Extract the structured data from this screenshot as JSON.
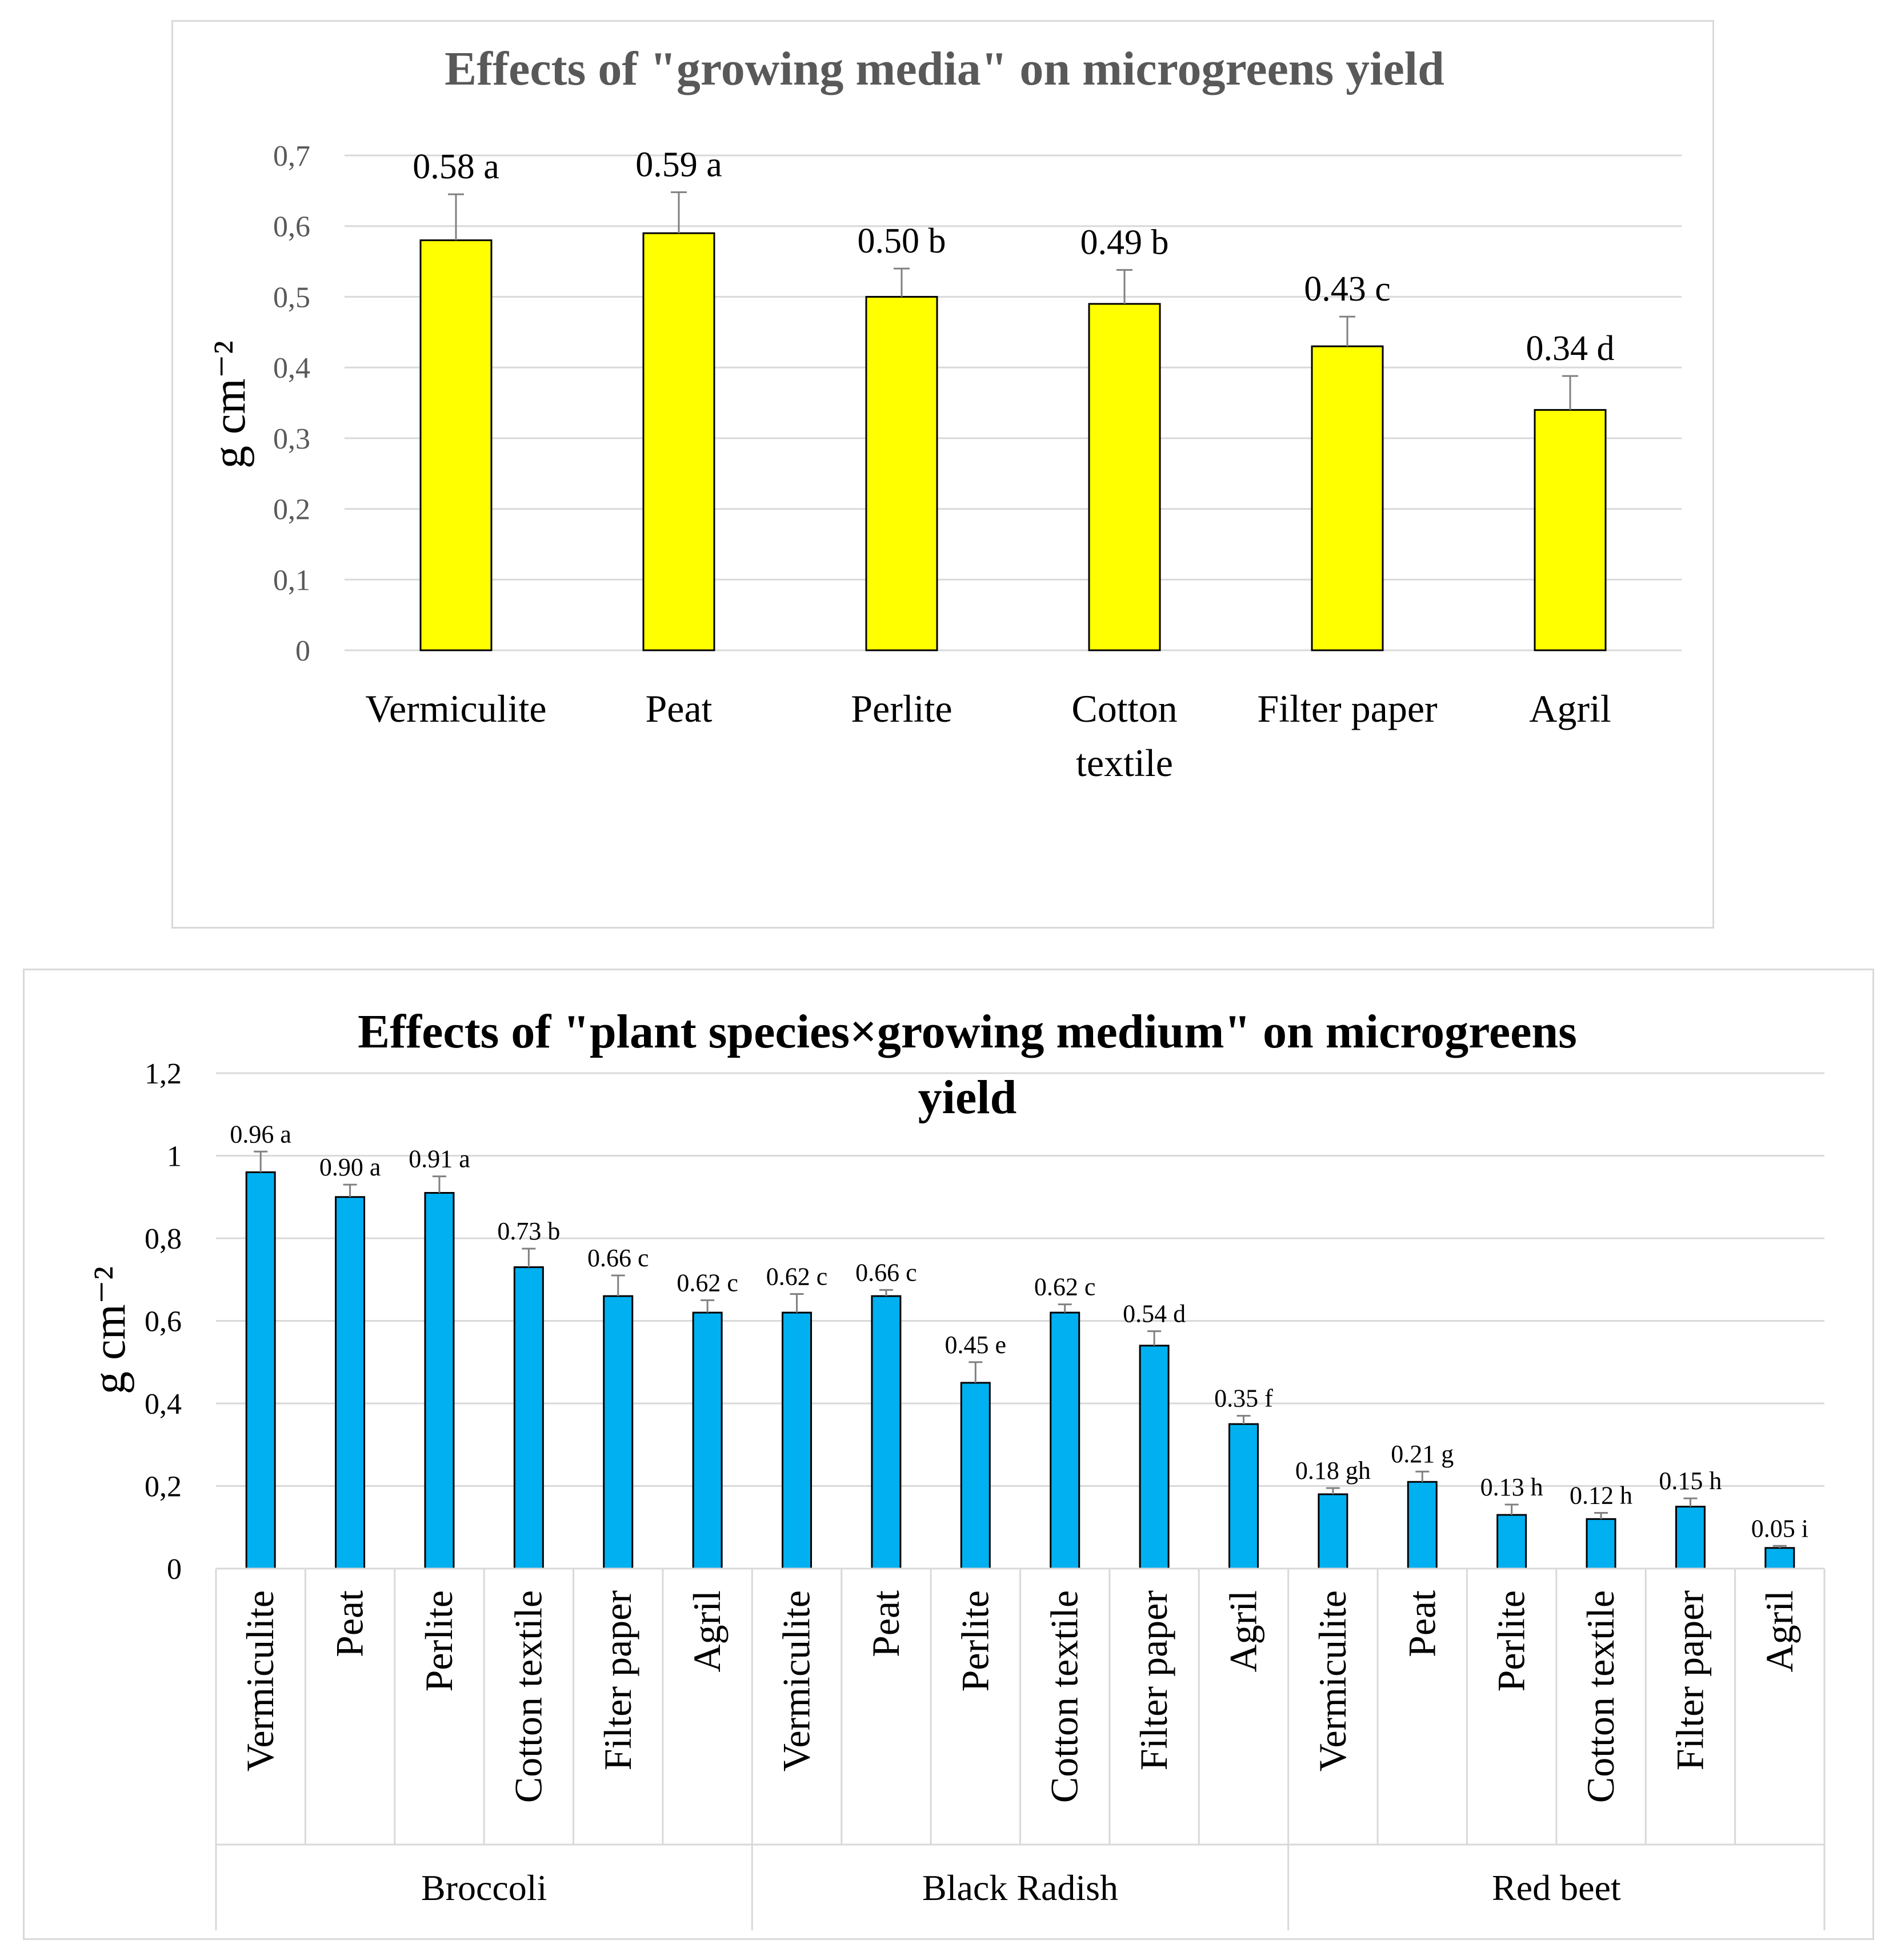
{
  "chart_data": [
    {
      "type": "bar",
      "title": "Effects of \"growing media\" on microgreens yield",
      "ylabel": "g cm⁻²",
      "ylim": [
        0,
        0.7
      ],
      "yticks": [
        "0",
        "0,1",
        "0,2",
        "0,3",
        "0,4",
        "0,5",
        "0,6",
        "0,7"
      ],
      "categories": [
        [
          "Vermiculite"
        ],
        [
          "Peat"
        ],
        [
          "Perlite"
        ],
        [
          "Cotton",
          "textile"
        ],
        [
          "Filter paper"
        ],
        [
          "Agril"
        ]
      ],
      "values": [
        0.58,
        0.59,
        0.5,
        0.49,
        0.43,
        0.34
      ],
      "errors": [
        0.065,
        0.058,
        0.04,
        0.048,
        0.042,
        0.048
      ],
      "labels": [
        "0.58 a",
        "0.59 a",
        "0.50 b",
        "0.49 b",
        "0.43 c",
        "0.34 d"
      ],
      "colors": {
        "bar": "#ffff00"
      }
    },
    {
      "type": "bar",
      "title_lines": [
        "Effects of \"plant species×growing medium\" on microgreens",
        "yield"
      ],
      "ylabel": "g cm⁻²",
      "ylim": [
        0,
        1.2
      ],
      "yticks": [
        "0",
        "0,2",
        "0,4",
        "0,6",
        "0,8",
        "1",
        "1,2"
      ],
      "groups": [
        "Broccoli",
        "Black Radish",
        "Red beet"
      ],
      "categories": [
        "Vermiculite",
        "Peat",
        "Perlite",
        "Cotton textile",
        "Filter paper",
        "Agril",
        "Vermiculite",
        "Peat",
        "Perlite",
        "Cotton textile",
        "Filter paper",
        "Agril",
        "Vermiculite",
        "Peat",
        "Perlite",
        "Cotton textile",
        "Filter paper",
        "Agril"
      ],
      "values": [
        0.96,
        0.9,
        0.91,
        0.73,
        0.66,
        0.62,
        0.62,
        0.66,
        0.45,
        0.62,
        0.54,
        0.35,
        0.18,
        0.21,
        0.13,
        0.12,
        0.15,
        0.05
      ],
      "errors": [
        0.05,
        0.03,
        0.04,
        0.045,
        0.05,
        0.03,
        0.045,
        0.015,
        0.05,
        0.02,
        0.035,
        0.02,
        0.015,
        0.025,
        0.025,
        0.015,
        0.02,
        0.005
      ],
      "labels": [
        "0.96 a",
        "0.90 a",
        "0.91 a",
        "0.73 b",
        "0.66 c",
        "0.62 c",
        "0.62 c",
        "0.66 c",
        "0.45 e",
        "0.62 c",
        "0.54 d",
        "0.35 f",
        "0.18 gh",
        "0.21 g",
        "0.13 h",
        "0.12 h",
        "0.15 h",
        "0.05 i"
      ],
      "colors": {
        "bar": "#00b0f0"
      }
    }
  ]
}
